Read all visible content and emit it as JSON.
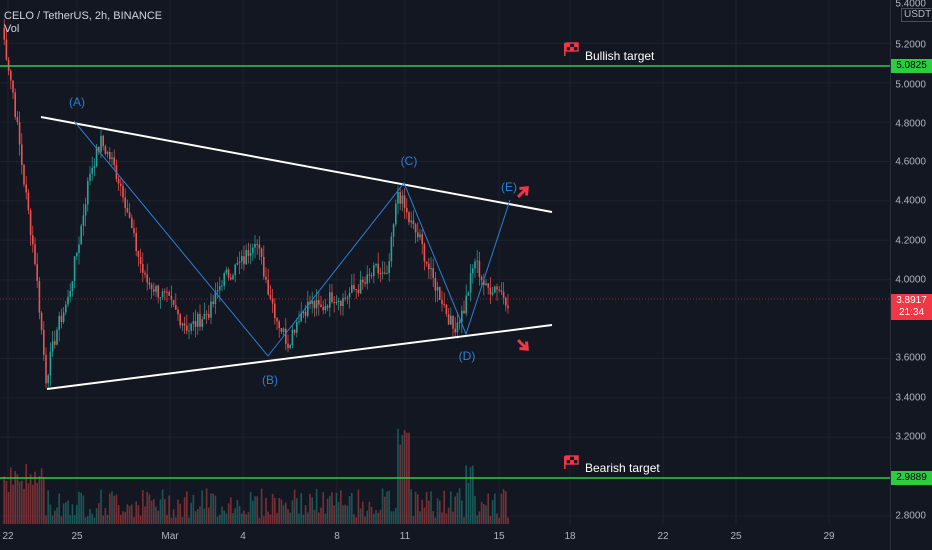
{
  "header": {
    "symbol_line": "CELO / TetherUS, 2h, BINANCE",
    "volume_label": "Vol"
  },
  "axis": {
    "currency": "USDT",
    "y_ticks": [
      "5.4000",
      "5.2000",
      "5.0000",
      "4.8000",
      "4.6000",
      "4.4000",
      "4.2000",
      "4.0000",
      "3.6000",
      "3.4000",
      "3.2000",
      "2.8000"
    ],
    "x_ticks": [
      "22",
      "25",
      "Mar",
      "4",
      "8",
      "11",
      "15",
      "18",
      "22",
      "25",
      "29"
    ]
  },
  "price_tags": {
    "bullish": "5.0825",
    "current_price": "3.8917",
    "countdown": "21:34",
    "bearish": "2.9889"
  },
  "annotations": {
    "bullish_target": "Bullish target",
    "bearish_target": "Bearish target",
    "wave_a": "(A)",
    "wave_b": "(B)",
    "wave_c": "(C)",
    "wave_d": "(D)",
    "wave_e": "(E)"
  },
  "colors": {
    "background": "#131722",
    "target_line": "#2ecc40",
    "wave_line": "#2e7ed3",
    "triangle_line": "#ffffff",
    "up_candle": "#26a69a",
    "down_candle": "#ef5350",
    "arrow": "#f23645"
  },
  "chart_data": {
    "type": "candlestick",
    "ylim": [
      2.7,
      5.42
    ],
    "levels": {
      "bullish_target": 5.0825,
      "bearish_target": 2.9889,
      "last_price": 3.8917
    },
    "wave_points": [
      {
        "label": "(A)",
        "x": "Feb 25",
        "y": 4.79
      },
      {
        "label": "(B)",
        "x": "Mar 5",
        "y": 3.62
      },
      {
        "label": "(C)",
        "x": "Mar 11",
        "y": 4.49
      },
      {
        "label": "(D)",
        "x": "Mar 13",
        "y": 3.72
      },
      {
        "label": "(E)",
        "x": "Mar 15",
        "y": 4.38
      }
    ],
    "triangle": {
      "upper": [
        {
          "x": "Feb 23",
          "y": 4.83
        },
        {
          "x": "Mar 16",
          "y": 4.35
        }
      ],
      "lower": [
        {
          "x": "Feb 22",
          "y": 3.44
        },
        {
          "x": "Mar 16",
          "y": 3.76
        }
      ]
    },
    "price_path": [
      [
        "Feb 20",
        5.28
      ],
      [
        "Feb 21",
        4.95
      ],
      [
        "Feb 21",
        4.5
      ],
      [
        "Feb 22",
        4.1
      ],
      [
        "Feb 22",
        3.5
      ],
      [
        "Feb 23",
        3.75
      ],
      [
        "Feb 23",
        3.9
      ],
      [
        "Feb 24",
        4.2
      ],
      [
        "Feb 24",
        4.55
      ],
      [
        "Feb 25",
        4.7
      ],
      [
        "Feb 25",
        4.6
      ],
      [
        "Feb 26",
        4.45
      ],
      [
        "Feb 26",
        4.2
      ],
      [
        "Feb 27",
        4.0
      ],
      [
        "Feb 27",
        3.95
      ],
      [
        "Feb 28",
        3.9
      ],
      [
        "Feb 28",
        3.82
      ],
      [
        "Mar 1",
        3.75
      ],
      [
        "Mar 1",
        3.8
      ],
      [
        "Mar 2",
        3.85
      ],
      [
        "Mar 2",
        4.0
      ],
      [
        "Mar 3",
        4.05
      ],
      [
        "Mar 3",
        4.1
      ],
      [
        "Mar 4",
        4.22
      ],
      [
        "Mar 4",
        4.0
      ],
      [
        "Mar 5",
        3.8
      ],
      [
        "Mar 5",
        3.68
      ],
      [
        "Mar 6",
        3.82
      ],
      [
        "Mar 6",
        3.88
      ],
      [
        "Mar 7",
        3.85
      ],
      [
        "Mar 7",
        3.92
      ],
      [
        "Mar 8",
        3.9
      ],
      [
        "Mar 8",
        3.95
      ],
      [
        "Mar 9",
        3.98
      ],
      [
        "Mar 9",
        4.05
      ],
      [
        "Mar 10",
        4.0
      ],
      [
        "Mar 10",
        4.45
      ],
      [
        "Mar 11",
        4.3
      ],
      [
        "Mar 11",
        4.2
      ],
      [
        "Mar 12",
        4.02
      ],
      [
        "Mar 12",
        3.9
      ],
      [
        "Mar 13",
        3.75
      ],
      [
        "Mar 13",
        3.85
      ],
      [
        "Mar 14",
        4.1
      ],
      [
        "Mar 14",
        3.95
      ],
      [
        "Mar 15",
        3.97
      ],
      [
        "Mar 15",
        3.89
      ]
    ]
  }
}
